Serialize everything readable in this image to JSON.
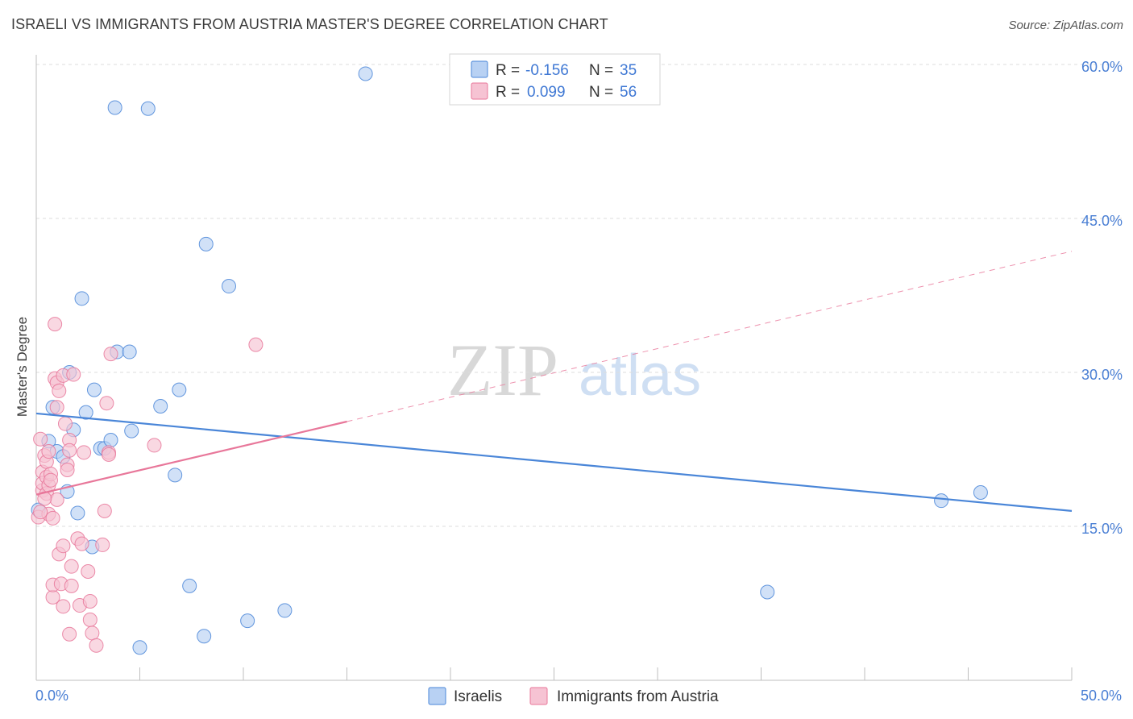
{
  "title": "ISRAELI VS IMMIGRANTS FROM AUSTRIA MASTER'S DEGREE CORRELATION CHART",
  "source": "Source: ZipAtlas.com",
  "colors": {
    "blue": "#4a86d8",
    "blue_fill": "#b8d1f3",
    "pink": "#e8779a",
    "pink_fill": "#f6c3d3",
    "grid": "#dcdcdc",
    "tick_text": "#4a7fd4"
  },
  "legend": {
    "rows": [
      {
        "r_label": "R =",
        "r_value": "-0.156",
        "n_label": "N =",
        "n_value": "35"
      },
      {
        "r_label": "R =",
        "r_value": "0.099",
        "n_label": "N =",
        "n_value": "56"
      }
    ]
  },
  "watermark": {
    "zip": "ZIP",
    "atlas": "atlas"
  },
  "chart_data": {
    "type": "scatter",
    "title": "ISRAELI VS IMMIGRANTS FROM AUSTRIA MASTER'S DEGREE CORRELATION CHART",
    "xlabel": "",
    "ylabel": "Master's Degree",
    "xlim": [
      0,
      50
    ],
    "ylim": [
      0,
      60
    ],
    "x_tick_labels": [
      "0.0%",
      "50.0%"
    ],
    "y_ticks": [
      15,
      30,
      45,
      60
    ],
    "y_tick_labels": [
      "15.0%",
      "30.0%",
      "45.0%",
      "60.0%"
    ],
    "series": [
      {
        "name": "Israelis",
        "color": "#4a86d8",
        "fill": "#b8d1f3",
        "r": -0.156,
        "n": 35,
        "trend": {
          "x0": 0,
          "y0": 26.0,
          "x1": 50,
          "y1": 16.5,
          "dashed_from": null
        },
        "points": [
          [
            0.1,
            16.6
          ],
          [
            0.6,
            23.3
          ],
          [
            0.8,
            26.6
          ],
          [
            1.0,
            22.3
          ],
          [
            1.3,
            21.8
          ],
          [
            1.6,
            30.0
          ],
          [
            1.8,
            24.4
          ],
          [
            2.0,
            16.3
          ],
          [
            2.2,
            37.2
          ],
          [
            2.4,
            26.1
          ],
          [
            2.8,
            28.3
          ],
          [
            3.1,
            22.6
          ],
          [
            3.3,
            22.6
          ],
          [
            3.6,
            23.4
          ],
          [
            3.9,
            32.0
          ],
          [
            3.8,
            55.8
          ],
          [
            4.5,
            32.0
          ],
          [
            4.6,
            24.3
          ],
          [
            5.0,
            3.2
          ],
          [
            5.4,
            55.7
          ],
          [
            6.0,
            26.7
          ],
          [
            6.7,
            20.0
          ],
          [
            6.9,
            28.3
          ],
          [
            7.4,
            9.2
          ],
          [
            8.2,
            42.5
          ],
          [
            8.1,
            4.3
          ],
          [
            9.3,
            38.4
          ],
          [
            10.2,
            5.8
          ],
          [
            12.0,
            6.8
          ],
          [
            15.9,
            59.1
          ],
          [
            35.3,
            8.6
          ],
          [
            43.7,
            17.5
          ],
          [
            45.6,
            18.3
          ],
          [
            2.7,
            13.0
          ],
          [
            1.5,
            18.4
          ]
        ]
      },
      {
        "name": "Immigrants from Austria",
        "color": "#e8779a",
        "fill": "#f6c3d3",
        "r": 0.099,
        "n": 56,
        "trend": {
          "x0": 0,
          "y0": 18.1,
          "x1": 50,
          "y1": 41.8,
          "dashed_from": 15.0
        },
        "points": [
          [
            0.1,
            15.9
          ],
          [
            0.2,
            23.5
          ],
          [
            0.3,
            20.3
          ],
          [
            0.3,
            18.5
          ],
          [
            0.3,
            19.2
          ],
          [
            0.4,
            21.9
          ],
          [
            0.5,
            19.8
          ],
          [
            0.5,
            18.2
          ],
          [
            0.5,
            21.3
          ],
          [
            0.6,
            16.2
          ],
          [
            0.6,
            19.0
          ],
          [
            0.6,
            22.3
          ],
          [
            0.7,
            20.1
          ],
          [
            0.7,
            19.5
          ],
          [
            0.8,
            15.8
          ],
          [
            0.8,
            8.1
          ],
          [
            0.8,
            9.3
          ],
          [
            0.9,
            34.7
          ],
          [
            0.9,
            29.4
          ],
          [
            1.0,
            29.0
          ],
          [
            1.0,
            26.6
          ],
          [
            1.0,
            17.6
          ],
          [
            1.1,
            28.2
          ],
          [
            1.1,
            12.3
          ],
          [
            1.2,
            9.4
          ],
          [
            1.3,
            29.7
          ],
          [
            1.3,
            13.1
          ],
          [
            1.3,
            7.2
          ],
          [
            1.4,
            25.0
          ],
          [
            1.5,
            21.0
          ],
          [
            1.5,
            20.5
          ],
          [
            1.6,
            23.4
          ],
          [
            1.6,
            22.4
          ],
          [
            1.6,
            4.5
          ],
          [
            1.7,
            11.1
          ],
          [
            1.7,
            9.2
          ],
          [
            1.8,
            29.8
          ],
          [
            2.0,
            13.8
          ],
          [
            2.1,
            7.3
          ],
          [
            2.2,
            13.3
          ],
          [
            2.3,
            22.2
          ],
          [
            2.5,
            10.6
          ],
          [
            2.6,
            5.9
          ],
          [
            2.6,
            7.7
          ],
          [
            2.7,
            4.6
          ],
          [
            2.9,
            3.4
          ],
          [
            3.2,
            13.2
          ],
          [
            3.3,
            16.5
          ],
          [
            3.4,
            27.0
          ],
          [
            3.5,
            22.2
          ],
          [
            3.5,
            22.0
          ],
          [
            3.6,
            31.8
          ],
          [
            5.7,
            22.9
          ],
          [
            10.6,
            32.7
          ],
          [
            0.2,
            16.4
          ],
          [
            0.4,
            17.7
          ]
        ]
      }
    ],
    "legend_entries": [
      "Israelis",
      "Immigrants from Austria"
    ]
  }
}
